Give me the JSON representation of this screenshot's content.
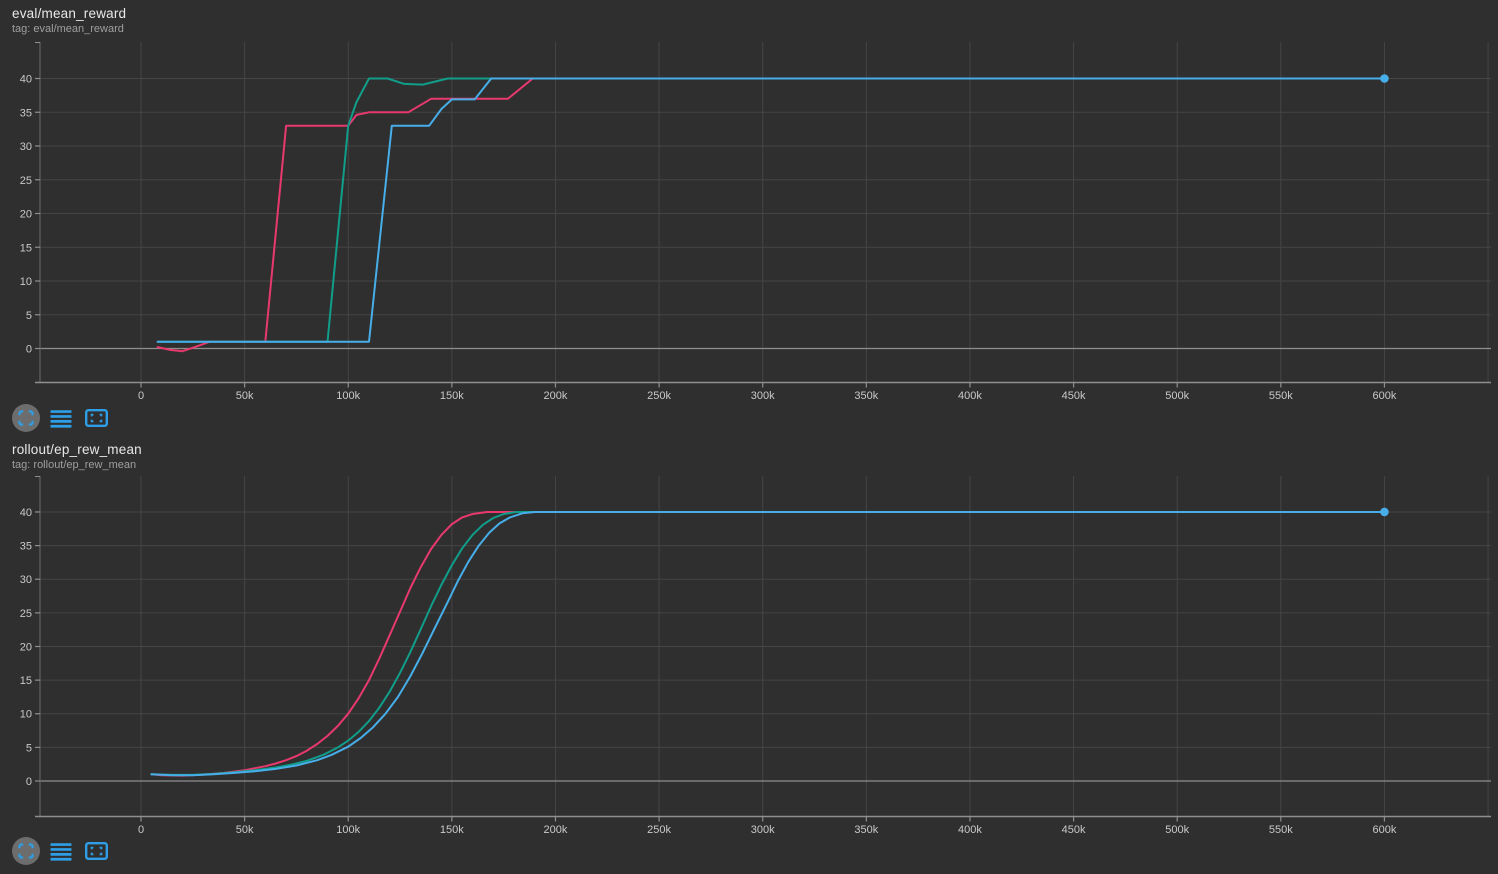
{
  "page": {
    "background": "#2f2f2f"
  },
  "colors": {
    "accent_blue": "#2e9fe6",
    "toolbar_circle_bg": "#6d6d6d",
    "grid_line": "#454545",
    "axis_line": "#8f8f8f",
    "spine_line": "#626262",
    "tick_label": "#c9c9c9",
    "title_text": "#e8e8e8",
    "tag_text": "#9f9f9f",
    "run_pink": "#e8396f",
    "run_teal": "#109e8a",
    "run_blue": "#47aee9"
  },
  "toolbar": {
    "icons": [
      "expand-selection-icon",
      "log-scale-lines-icon",
      "fit-domain-icon"
    ]
  },
  "charts": [
    {
      "title": "eval/mean_reward",
      "tag": "tag: eval/mean_reward",
      "chart_data": {
        "type": "line",
        "title": "eval/mean_reward",
        "xlabel": "",
        "ylabel": "",
        "grid": true,
        "legend": "none",
        "xlim": [
          0,
          650000
        ],
        "ylim": [
          -5,
          45
        ],
        "x_ticks": [
          "0",
          "50k",
          "100k",
          "150k",
          "200k",
          "250k",
          "300k",
          "350k",
          "400k",
          "450k",
          "500k",
          "550k",
          "600k"
        ],
        "x_tick_values": [
          0,
          50000,
          100000,
          150000,
          200000,
          250000,
          300000,
          350000,
          400000,
          450000,
          500000,
          550000,
          600000
        ],
        "y_ticks": [
          0,
          5,
          10,
          15,
          20,
          25,
          30,
          35,
          40
        ],
        "series": [
          {
            "name": "run-pink",
            "color": "#e8396f",
            "points": [
              [
                8000,
                0.2
              ],
              [
                14000,
                -0.2
              ],
              [
                20000,
                -0.4
              ],
              [
                26000,
                0.2
              ],
              [
                33000,
                1
              ],
              [
                60000,
                1
              ],
              [
                70000,
                33
              ],
              [
                100000,
                33
              ],
              [
                104000,
                34.6
              ],
              [
                110000,
                35
              ],
              [
                129000,
                35
              ],
              [
                140000,
                37
              ],
              [
                177000,
                37
              ],
              [
                189000,
                40
              ],
              [
                600000,
                40
              ]
            ]
          },
          {
            "name": "run-teal",
            "color": "#109e8a",
            "points": [
              [
                8000,
                1
              ],
              [
                90000,
                1
              ],
              [
                100000,
                33
              ],
              [
                104000,
                36.5
              ],
              [
                110000,
                40
              ],
              [
                119000,
                40
              ],
              [
                127000,
                39.2
              ],
              [
                136000,
                39.1
              ],
              [
                148000,
                40
              ],
              [
                600000,
                40
              ]
            ]
          },
          {
            "name": "run-blue",
            "color": "#47aee9",
            "points": [
              [
                8000,
                1
              ],
              [
                110000,
                1
              ],
              [
                121000,
                33
              ],
              [
                139000,
                33
              ],
              [
                145000,
                35.5
              ],
              [
                150000,
                36.9
              ],
              [
                161000,
                36.9
              ],
              [
                169000,
                40
              ],
              [
                600000,
                40
              ]
            ]
          }
        ],
        "end_marker": {
          "series": "run-blue",
          "x": 600000,
          "y": 40
        }
      }
    },
    {
      "title": "rollout/ep_rew_mean",
      "tag": "tag: rollout/ep_rew_mean",
      "chart_data": {
        "type": "line",
        "title": "rollout/ep_rew_mean",
        "xlabel": "",
        "ylabel": "",
        "grid": true,
        "legend": "none",
        "xlim": [
          0,
          650000
        ],
        "ylim": [
          -5,
          45
        ],
        "x_ticks": [
          "0",
          "50k",
          "100k",
          "150k",
          "200k",
          "250k",
          "300k",
          "350k",
          "400k",
          "450k",
          "500k",
          "550k",
          "600k"
        ],
        "x_tick_values": [
          0,
          50000,
          100000,
          150000,
          200000,
          250000,
          300000,
          350000,
          400000,
          450000,
          500000,
          550000,
          600000
        ],
        "y_ticks": [
          0,
          5,
          10,
          15,
          20,
          25,
          30,
          35,
          40
        ],
        "series": [
          {
            "name": "run-pink",
            "color": "#e8396f",
            "points": [
              [
                5000,
                1
              ],
              [
                10000,
                0.85
              ],
              [
                20000,
                0.8
              ],
              [
                30000,
                0.95
              ],
              [
                40000,
                1.2
              ],
              [
                50000,
                1.6
              ],
              [
                55000,
                1.9
              ],
              [
                60000,
                2.2
              ],
              [
                65000,
                2.6
              ],
              [
                70000,
                3.1
              ],
              [
                75000,
                3.7
              ],
              [
                80000,
                4.5
              ],
              [
                85000,
                5.5
              ],
              [
                90000,
                6.7
              ],
              [
                95000,
                8.2
              ],
              [
                100000,
                10
              ],
              [
                105000,
                12.3
              ],
              [
                110000,
                15
              ],
              [
                115000,
                18.2
              ],
              [
                120000,
                21.7
              ],
              [
                125000,
                25.2
              ],
              [
                130000,
                28.7
              ],
              [
                135000,
                31.8
              ],
              [
                140000,
                34.5
              ],
              [
                145000,
                36.6
              ],
              [
                150000,
                38.2
              ],
              [
                155000,
                39.2
              ],
              [
                160000,
                39.7
              ],
              [
                167000,
                40
              ],
              [
                250000,
                40
              ],
              [
                400000,
                40
              ],
              [
                600000,
                40
              ]
            ]
          },
          {
            "name": "run-teal",
            "color": "#109e8a",
            "points": [
              [
                5000,
                1
              ],
              [
                15000,
                0.9
              ],
              [
                25000,
                0.9
              ],
              [
                35000,
                1.05
              ],
              [
                45000,
                1.3
              ],
              [
                55000,
                1.6
              ],
              [
                65000,
                2
              ],
              [
                72000,
                2.4
              ],
              [
                80000,
                3
              ],
              [
                88000,
                3.9
              ],
              [
                95000,
                5
              ],
              [
                100000,
                6
              ],
              [
                105000,
                7.3
              ],
              [
                110000,
                8.9
              ],
              [
                115000,
                10.9
              ],
              [
                120000,
                13.3
              ],
              [
                125000,
                16.1
              ],
              [
                130000,
                19.2
              ],
              [
                135000,
                22.6
              ],
              [
                140000,
                26
              ],
              [
                145000,
                29.2
              ],
              [
                150000,
                32.1
              ],
              [
                155000,
                34.6
              ],
              [
                160000,
                36.6
              ],
              [
                165000,
                38.1
              ],
              [
                170000,
                39.1
              ],
              [
                175000,
                39.7
              ],
              [
                181000,
                40
              ],
              [
                250000,
                40
              ],
              [
                600000,
                40
              ]
            ]
          },
          {
            "name": "run-blue",
            "color": "#47aee9",
            "points": [
              [
                5000,
                1
              ],
              [
                15000,
                0.85
              ],
              [
                25000,
                0.85
              ],
              [
                35000,
                1
              ],
              [
                45000,
                1.2
              ],
              [
                55000,
                1.45
              ],
              [
                65000,
                1.8
              ],
              [
                75000,
                2.3
              ],
              [
                85000,
                3.1
              ],
              [
                92000,
                3.9
              ],
              [
                100000,
                5.1
              ],
              [
                106000,
                6.4
              ],
              [
                112000,
                8
              ],
              [
                118000,
                10
              ],
              [
                124000,
                12.5
              ],
              [
                130000,
                15.6
              ],
              [
                136000,
                19.1
              ],
              [
                142000,
                22.9
              ],
              [
                148000,
                26.6
              ],
              [
                153000,
                29.8
              ],
              [
                158000,
                32.6
              ],
              [
                163000,
                35
              ],
              [
                168000,
                36.9
              ],
              [
                173000,
                38.3
              ],
              [
                178000,
                39.2
              ],
              [
                184000,
                39.8
              ],
              [
                190000,
                40
              ],
              [
                250000,
                40
              ],
              [
                600000,
                40
              ]
            ]
          }
        ],
        "end_marker": {
          "series": "run-blue",
          "x": 600000,
          "y": 40
        }
      }
    }
  ]
}
